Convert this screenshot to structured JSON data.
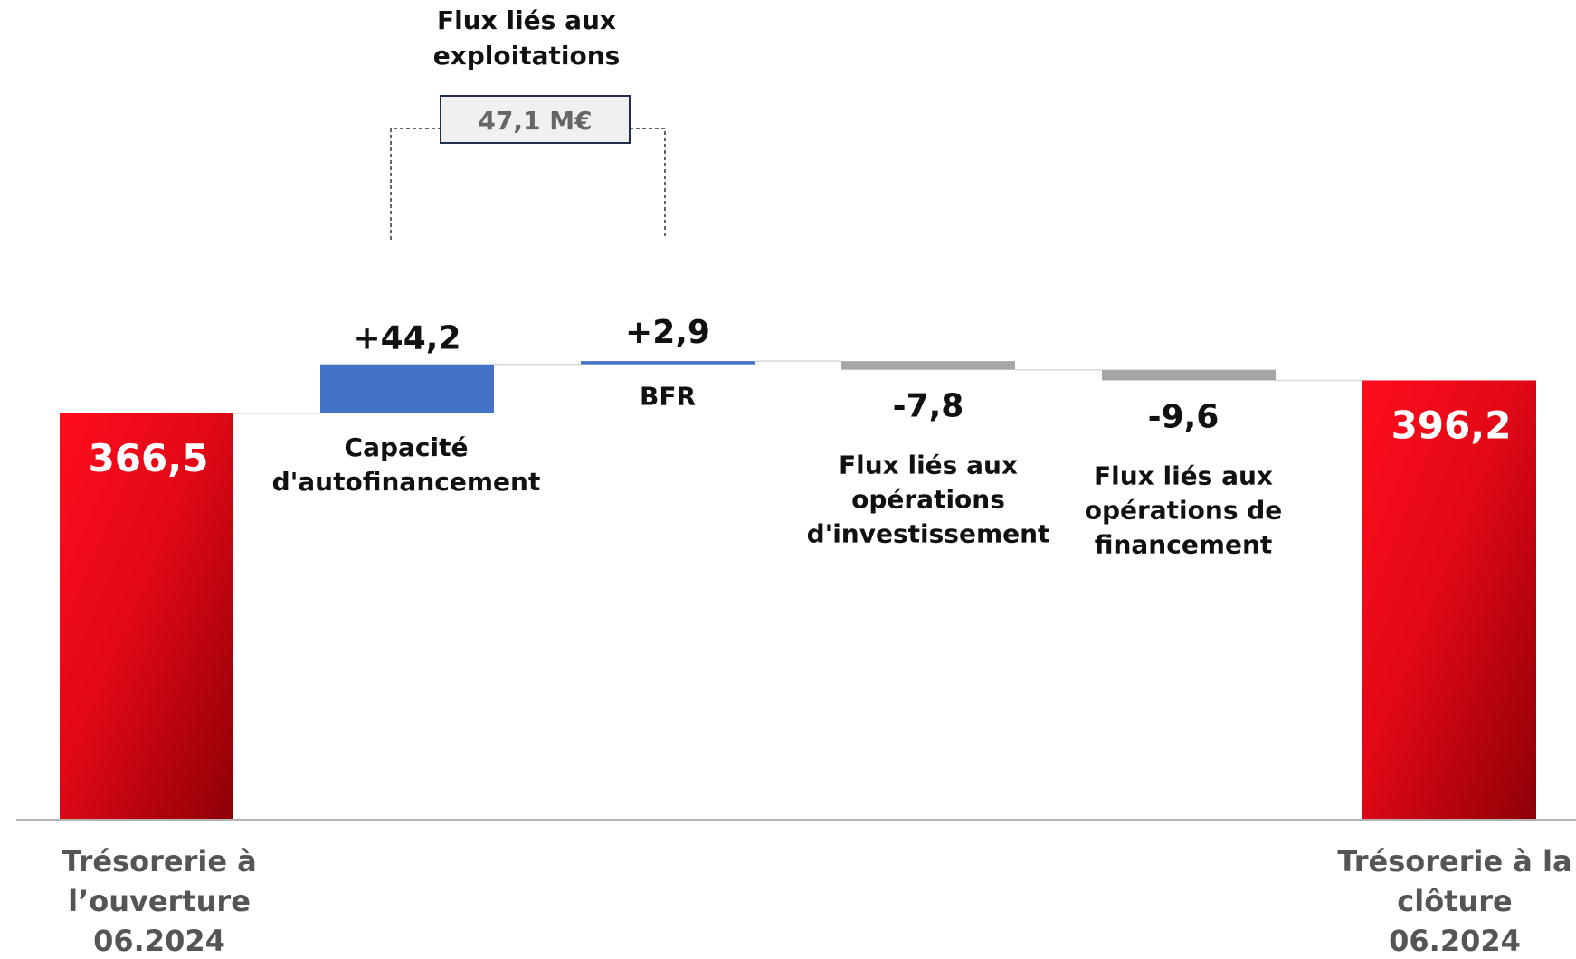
{
  "chart_data": {
    "type": "bar",
    "subtype": "waterfall",
    "unit": "M€",
    "colors": {
      "total": "#e0101c",
      "total_dark": "#9a0008",
      "positive": "#4472c4",
      "negative": "#a6a6a6",
      "axis": "#b3b3b3",
      "connector": "#d9d9d9",
      "bracket_box_fill": "#f0f0f0",
      "bracket_box_border": "#1f2d4a"
    },
    "bars": [
      {
        "id": "opening",
        "kind": "total",
        "value": 366.5,
        "value_label": "366,5",
        "label_lines": [
          "Trésorerie à",
          "l’ouverture",
          "06.2024"
        ]
      },
      {
        "id": "caf",
        "kind": "delta",
        "value": 44.2,
        "value_label": "+44,2",
        "label_lines": [
          "Capacité",
          "d'autofinancement"
        ]
      },
      {
        "id": "bfr",
        "kind": "delta",
        "value": 2.9,
        "value_label": "+2,9",
        "label_lines": [
          "BFR"
        ]
      },
      {
        "id": "invest",
        "kind": "delta",
        "value": -7.8,
        "value_label": "-7,8",
        "label_lines": [
          "Flux liés aux",
          "opérations",
          "d'investissement"
        ]
      },
      {
        "id": "financ",
        "kind": "delta",
        "value": -9.6,
        "value_label": "-9,6",
        "label_lines": [
          "Flux liés aux",
          "opérations de",
          "financement"
        ]
      },
      {
        "id": "closing",
        "kind": "total",
        "value": 396.2,
        "value_label": "396,2",
        "label_lines": [
          "Trésorerie à la",
          "clôture",
          "06.2024"
        ]
      }
    ],
    "bracket": {
      "title_lines": [
        "Flux liés aux",
        "exploitations"
      ],
      "value_label": "47,1 M€",
      "spans": [
        "caf",
        "bfr"
      ]
    }
  }
}
